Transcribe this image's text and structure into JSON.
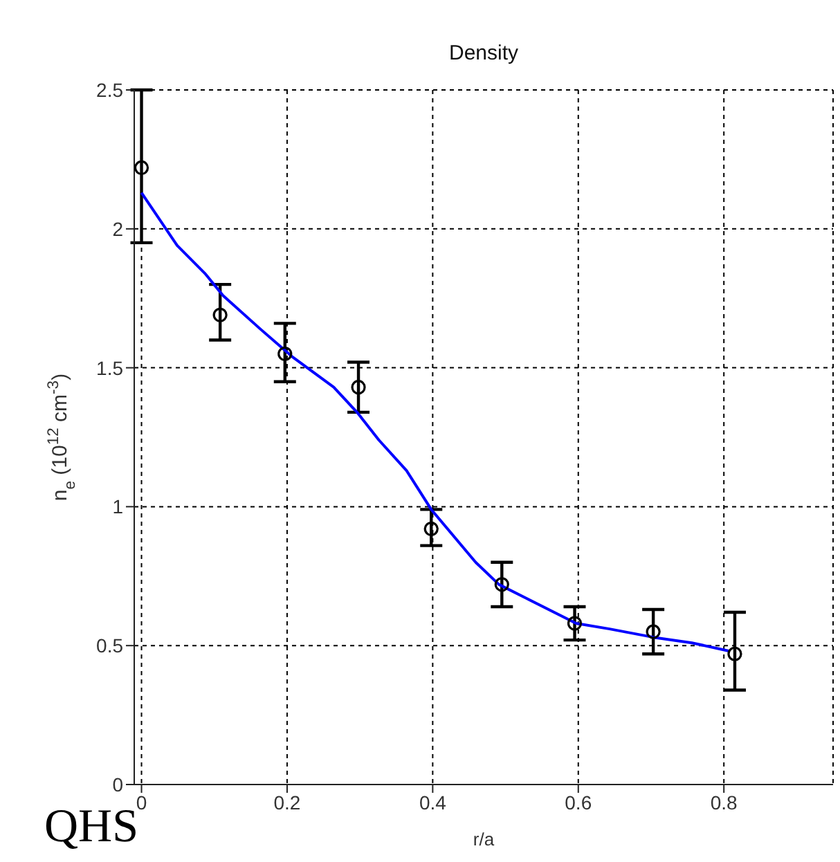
{
  "chart_data": {
    "type": "scatter",
    "title": "Density",
    "xlabel": "r/a",
    "ylabel": "n$_{e}$ (10$^{12}$ cm$^{-3}$)",
    "xlim": [
      -0.01,
      0.95
    ],
    "xticks": [
      0,
      0.2,
      0.4,
      0.6,
      0.8
    ],
    "ylim": [
      0,
      2.5
    ],
    "yticks": [
      0,
      0.5,
      1,
      1.5,
      2,
      2.5
    ],
    "grid": true,
    "line_style": "dashed",
    "series": [
      {
        "color": "#000000",
        "marker": "circle",
        "x": [
          0,
          0.108,
          0.197,
          0.298,
          0.398,
          0.495,
          0.595,
          0.703,
          0.815
        ],
        "values": [
          2.22,
          1.69,
          1.55,
          1.43,
          0.92,
          0.72,
          0.58,
          0.55,
          0.47
        ],
        "errors": [
          [
            1.95,
            2.5
          ],
          [
            1.6,
            1.8
          ],
          [
            1.45,
            1.66
          ],
          [
            1.34,
            1.52
          ],
          [
            0.86,
            0.99
          ],
          [
            0.64,
            0.8
          ],
          [
            0.52,
            0.64
          ],
          [
            0.47,
            0.63
          ],
          [
            0.34,
            0.62
          ]
        ]
      },
      {
        "type": "line",
        "color": "#0000ff",
        "marker": "none",
        "line_style": "solid",
        "x": [
          0,
          0.049,
          0.087,
          0.112,
          0.163,
          0.207,
          0.264,
          0.296,
          0.326,
          0.364,
          0.398,
          0.459,
          0.491,
          0.529,
          0.597,
          0.643,
          0.703,
          0.756,
          0.808
        ],
        "values": [
          2.13,
          1.94,
          1.84,
          1.76,
          1.64,
          1.54,
          1.43,
          1.34,
          1.24,
          1.13,
          0.99,
          0.8,
          0.72,
          0.67,
          0.58,
          0.56,
          0.53,
          0.51,
          0.48
        ]
      }
    ],
    "annotations": [
      "QHS"
    ]
  }
}
